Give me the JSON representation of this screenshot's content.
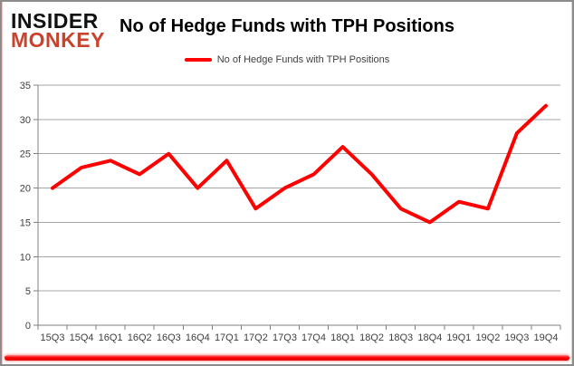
{
  "brand": {
    "line1": "INSIDER",
    "line2": "MONKEY"
  },
  "title": "No of Hedge Funds with TPH Positions",
  "legend": {
    "label": "No of Hedge Funds with TPH Positions"
  },
  "colors": {
    "line": "#ff0000",
    "grid": "#a6a6a6",
    "axis": "#808080",
    "axis_text": "#3f3f3f",
    "logo_red": "#c8432e"
  },
  "chart_data": {
    "type": "line",
    "title": "No of Hedge Funds with TPH Positions",
    "categories": [
      "15Q3",
      "15Q4",
      "16Q1",
      "16Q2",
      "16Q3",
      "16Q4",
      "17Q1",
      "17Q2",
      "17Q3",
      "17Q4",
      "18Q1",
      "18Q2",
      "18Q3",
      "18Q4",
      "19Q1",
      "19Q2",
      "19Q3",
      "19Q4"
    ],
    "series": [
      {
        "name": "No of Hedge Funds with TPH Positions",
        "color": "#ff0000",
        "values": [
          20,
          23,
          24,
          22,
          25,
          20,
          24,
          17,
          20,
          22,
          26,
          22,
          17,
          15,
          18,
          17,
          28,
          32
        ]
      }
    ],
    "xlabel": "",
    "ylabel": "",
    "ylim": [
      0,
      35
    ],
    "ytick_step": 5,
    "grid": true,
    "legend_position": "top"
  }
}
